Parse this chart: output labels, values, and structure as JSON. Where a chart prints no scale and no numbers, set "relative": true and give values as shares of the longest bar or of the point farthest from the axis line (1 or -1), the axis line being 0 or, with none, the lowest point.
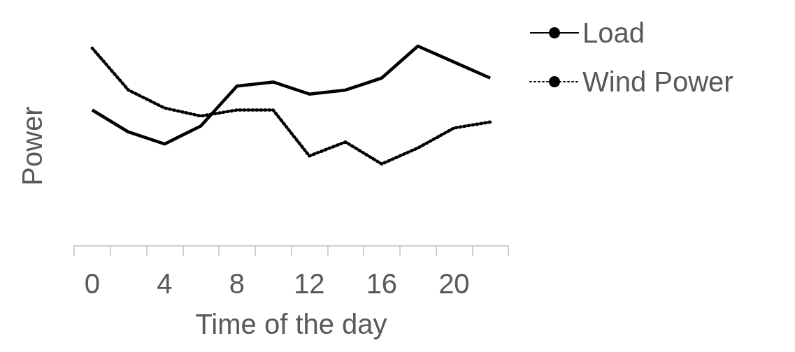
{
  "chart_data": {
    "type": "line",
    "relative": true,
    "xlabel": "Time of the day",
    "ylabel": "Power",
    "categories": [
      "0",
      null,
      "4",
      null,
      "8",
      null,
      "12",
      null,
      "16",
      null,
      "20",
      null
    ],
    "series": [
      {
        "name": "Load",
        "color": "#000000",
        "line_style": "solid",
        "values": [
          0.68,
          0.57,
          0.51,
          0.6,
          0.8,
          0.82,
          0.76,
          0.78,
          0.84,
          1.0,
          0.92,
          0.84
        ]
      },
      {
        "name": "Wind Power",
        "color": "#000000",
        "line_style": "dotted",
        "values": [
          0.99,
          0.78,
          0.69,
          0.65,
          0.68,
          0.68,
          0.45,
          0.52,
          0.41,
          0.49,
          0.59,
          0.62
        ]
      }
    ],
    "marker": "none",
    "grid": false,
    "legend": "top right"
  }
}
